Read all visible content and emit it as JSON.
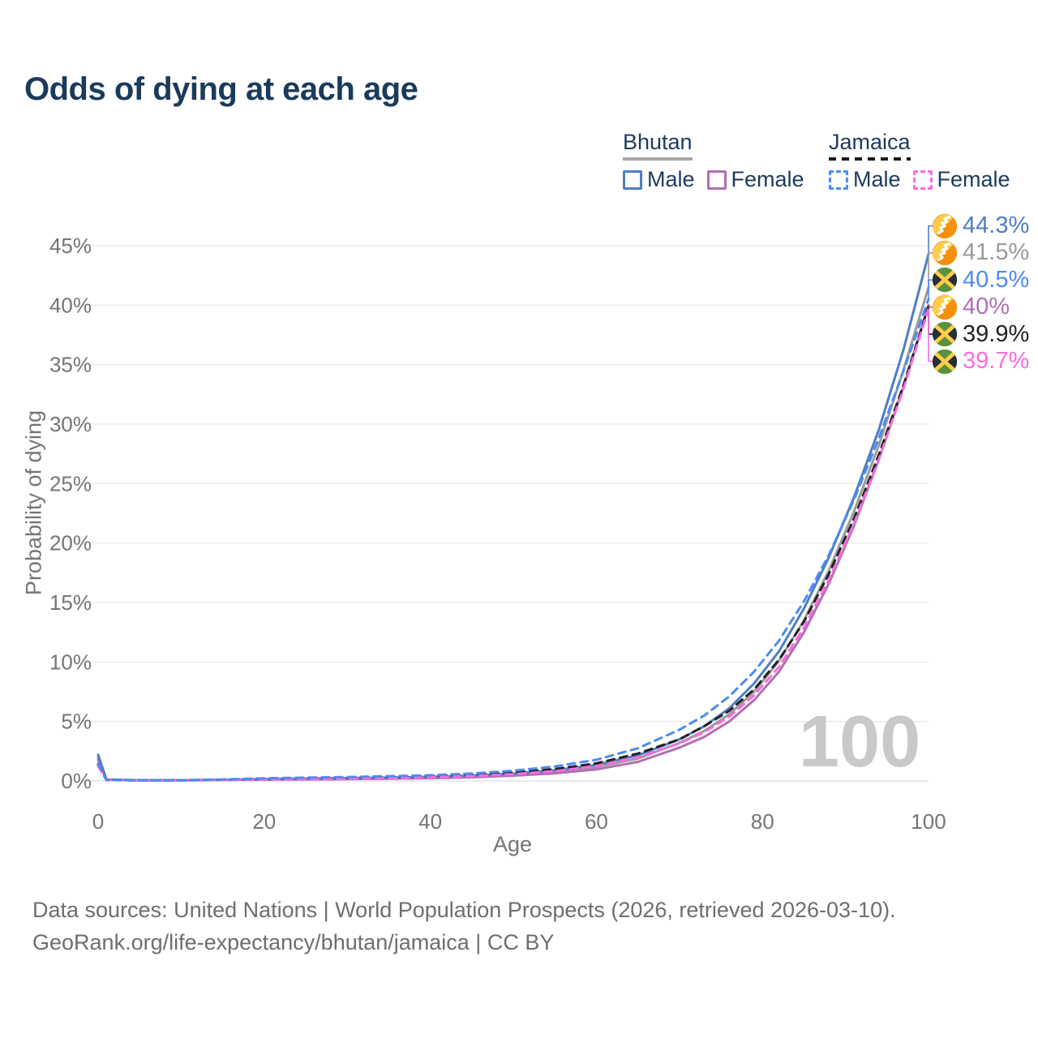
{
  "title": "Odds of dying at each age",
  "watermark": "100",
  "legend": {
    "groups": [
      {
        "country": "Bhutan",
        "line_style": "solid",
        "underline_color": "#a9a9a9",
        "items": [
          {
            "label": "Male",
            "color": "#4e7dc6"
          },
          {
            "label": "Female",
            "color": "#b06fb4"
          }
        ]
      },
      {
        "country": "Jamaica",
        "line_style": "dashed",
        "underline_color": "#1a1a1a",
        "items": [
          {
            "label": "Male",
            "color": "#4b8bf4"
          },
          {
            "label": "Female",
            "color": "#fb6be0"
          }
        ]
      }
    ]
  },
  "chart_data": {
    "type": "line",
    "title": "Odds of dying at each age",
    "xlabel": "Age",
    "ylabel": "Probability of dying",
    "xlim": [
      0,
      100
    ],
    "ylim_pct": [
      0,
      45
    ],
    "grid": "horizontal",
    "xticks": [
      0,
      20,
      40,
      60,
      80,
      100
    ],
    "xtick_labels": [
      "0",
      "20",
      "40",
      "60",
      "80",
      "100"
    ],
    "yticks": [
      0,
      5,
      10,
      15,
      20,
      25,
      30,
      35,
      40,
      45
    ],
    "ytick_labels": [
      "0%",
      "5%",
      "10%",
      "15%",
      "20%",
      "25%",
      "30%",
      "35%",
      "40%",
      "45%"
    ],
    "series": [
      {
        "id": "bhutan-total",
        "name": "Bhutan (both sexes)",
        "color": "#9a9a9a",
        "dash": false,
        "points": [
          [
            0,
            2.0
          ],
          [
            1,
            0.11
          ],
          [
            5,
            0.055
          ],
          [
            10,
            0.06
          ],
          [
            15,
            0.09
          ],
          [
            20,
            0.13
          ],
          [
            25,
            0.17
          ],
          [
            30,
            0.21
          ],
          [
            35,
            0.25
          ],
          [
            40,
            0.29
          ],
          [
            45,
            0.39
          ],
          [
            50,
            0.54
          ],
          [
            55,
            0.78
          ],
          [
            60,
            1.17
          ],
          [
            65,
            1.88
          ],
          [
            70,
            3.2
          ],
          [
            73,
            4.2
          ],
          [
            76,
            5.6
          ],
          [
            79,
            7.5
          ],
          [
            82,
            10.1
          ],
          [
            85,
            13.5
          ],
          [
            88,
            17.7
          ],
          [
            91,
            22.6
          ],
          [
            94,
            28.2
          ],
          [
            97,
            34.6
          ],
          [
            100,
            41.5
          ]
        ]
      },
      {
        "id": "bhutan-female",
        "name": "Bhutan Female",
        "color": "#b06fb4",
        "dash": false,
        "points": [
          [
            0,
            1.8
          ],
          [
            1,
            0.1
          ],
          [
            5,
            0.05
          ],
          [
            10,
            0.05
          ],
          [
            15,
            0.08
          ],
          [
            20,
            0.1
          ],
          [
            25,
            0.13
          ],
          [
            30,
            0.16
          ],
          [
            35,
            0.19
          ],
          [
            40,
            0.23
          ],
          [
            45,
            0.31
          ],
          [
            50,
            0.44
          ],
          [
            55,
            0.64
          ],
          [
            60,
            0.97
          ],
          [
            65,
            1.6
          ],
          [
            70,
            2.8
          ],
          [
            73,
            3.7
          ],
          [
            76,
            5.0
          ],
          [
            79,
            6.8
          ],
          [
            82,
            9.2
          ],
          [
            85,
            12.5
          ],
          [
            88,
            16.6
          ],
          [
            91,
            21.4
          ],
          [
            94,
            27.0
          ],
          [
            97,
            33.2
          ],
          [
            100,
            40.0
          ]
        ]
      },
      {
        "id": "bhutan-male",
        "name": "Bhutan Male",
        "color": "#4e7dc6",
        "dash": false,
        "points": [
          [
            0,
            2.2
          ],
          [
            1,
            0.12
          ],
          [
            5,
            0.06
          ],
          [
            10,
            0.07
          ],
          [
            15,
            0.1
          ],
          [
            20,
            0.16
          ],
          [
            25,
            0.2
          ],
          [
            30,
            0.24
          ],
          [
            35,
            0.28
          ],
          [
            40,
            0.34
          ],
          [
            45,
            0.45
          ],
          [
            50,
            0.62
          ],
          [
            55,
            0.9
          ],
          [
            60,
            1.35
          ],
          [
            65,
            2.15
          ],
          [
            70,
            3.5
          ],
          [
            73,
            4.6
          ],
          [
            76,
            6.1
          ],
          [
            79,
            8.2
          ],
          [
            82,
            10.9
          ],
          [
            85,
            14.5
          ],
          [
            88,
            18.8
          ],
          [
            91,
            23.8
          ],
          [
            94,
            29.5
          ],
          [
            97,
            36.3
          ],
          [
            100,
            44.3
          ]
        ]
      },
      {
        "id": "jamaica-total",
        "name": "Jamaica (both sexes)",
        "color": "#222222",
        "dash": true,
        "points": [
          [
            0,
            1.35
          ],
          [
            1,
            0.085
          ],
          [
            5,
            0.045
          ],
          [
            10,
            0.05
          ],
          [
            15,
            0.1
          ],
          [
            20,
            0.17
          ],
          [
            25,
            0.21
          ],
          [
            30,
            0.26
          ],
          [
            35,
            0.31
          ],
          [
            40,
            0.38
          ],
          [
            45,
            0.51
          ],
          [
            50,
            0.7
          ],
          [
            55,
            1.0
          ],
          [
            60,
            1.48
          ],
          [
            65,
            2.3
          ],
          [
            70,
            3.5
          ],
          [
            73,
            4.6
          ],
          [
            76,
            5.9
          ],
          [
            79,
            7.7
          ],
          [
            82,
            10.2
          ],
          [
            85,
            13.4
          ],
          [
            88,
            17.4
          ],
          [
            91,
            22.0
          ],
          [
            94,
            27.4
          ],
          [
            97,
            33.3
          ],
          [
            100,
            39.9
          ]
        ]
      },
      {
        "id": "jamaica-female",
        "name": "Jamaica Female",
        "color": "#fb6be0",
        "dash": true,
        "points": [
          [
            0,
            1.25
          ],
          [
            1,
            0.08
          ],
          [
            5,
            0.04
          ],
          [
            10,
            0.045
          ],
          [
            15,
            0.07
          ],
          [
            20,
            0.11
          ],
          [
            25,
            0.15
          ],
          [
            30,
            0.19
          ],
          [
            35,
            0.24
          ],
          [
            40,
            0.3
          ],
          [
            45,
            0.41
          ],
          [
            50,
            0.57
          ],
          [
            55,
            0.82
          ],
          [
            60,
            1.25
          ],
          [
            65,
            2.0
          ],
          [
            70,
            3.15
          ],
          [
            73,
            4.1
          ],
          [
            76,
            5.4
          ],
          [
            79,
            7.2
          ],
          [
            82,
            9.6
          ],
          [
            85,
            12.9
          ],
          [
            88,
            16.9
          ],
          [
            91,
            21.6
          ],
          [
            94,
            27.0
          ],
          [
            97,
            33.0
          ],
          [
            100,
            39.7
          ]
        ]
      },
      {
        "id": "jamaica-male",
        "name": "Jamaica Male",
        "color": "#4b8bf4",
        "dash": true,
        "points": [
          [
            0,
            1.45
          ],
          [
            1,
            0.09
          ],
          [
            5,
            0.05
          ],
          [
            10,
            0.06
          ],
          [
            15,
            0.12
          ],
          [
            20,
            0.22
          ],
          [
            25,
            0.28
          ],
          [
            30,
            0.33
          ],
          [
            35,
            0.4
          ],
          [
            40,
            0.48
          ],
          [
            45,
            0.63
          ],
          [
            50,
            0.86
          ],
          [
            55,
            1.22
          ],
          [
            60,
            1.78
          ],
          [
            65,
            2.75
          ],
          [
            70,
            4.3
          ],
          [
            73,
            5.5
          ],
          [
            76,
            7.1
          ],
          [
            79,
            9.2
          ],
          [
            82,
            11.8
          ],
          [
            85,
            15.1
          ],
          [
            88,
            19.0
          ],
          [
            91,
            23.6
          ],
          [
            94,
            28.8
          ],
          [
            97,
            34.5
          ],
          [
            100,
            40.5
          ]
        ]
      }
    ]
  },
  "end_labels": [
    {
      "flag": "bhutan",
      "value": "44.3%",
      "pct": 44.3,
      "color": "#4e7dc6"
    },
    {
      "flag": "bhutan",
      "value": "41.5%",
      "pct": 41.5,
      "color": "#9a9a9a"
    },
    {
      "flag": "jamaica",
      "value": "40.5%",
      "pct": 40.5,
      "color": "#4b8bf4"
    },
    {
      "flag": "bhutan",
      "value": "40%",
      "pct": 40.0,
      "color": "#b06fb4"
    },
    {
      "flag": "jamaica",
      "value": "39.9%",
      "pct": 39.9,
      "color": "#222222"
    },
    {
      "flag": "jamaica",
      "value": "39.7%",
      "pct": 39.7,
      "color": "#fb6be0"
    }
  ],
  "footer": {
    "line1": "Data sources: United Nations | World Population Prospects (2026, retrieved 2026-03-10).",
    "line2": "GeoRank.org/life-expectancy/bhutan/jamaica | CC BY"
  }
}
